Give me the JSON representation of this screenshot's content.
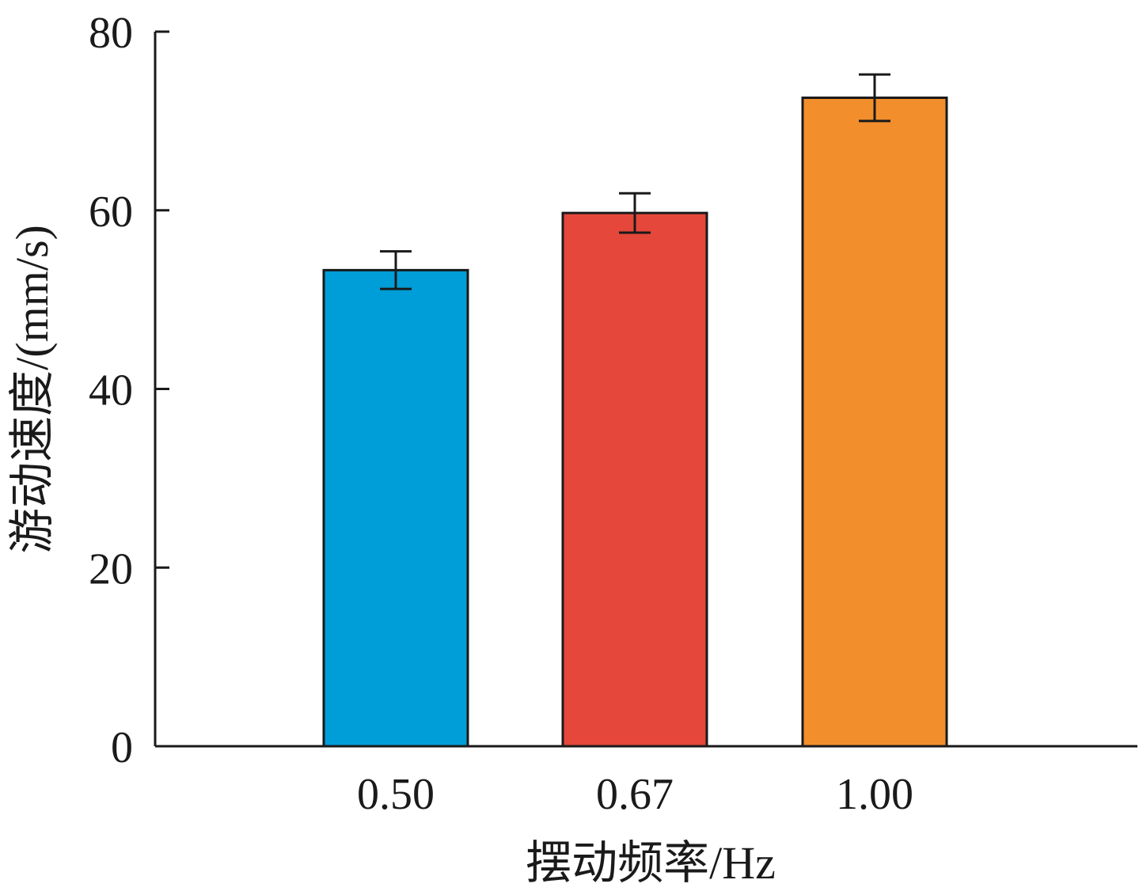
{
  "chart_data": {
    "type": "bar",
    "categories": [
      "0.50",
      "0.67",
      "1.00"
    ],
    "series": [
      {
        "values": [
          53.3,
          59.7,
          72.6
        ],
        "errors": [
          2.1,
          2.2,
          2.6
        ],
        "colors": [
          "#009ed8",
          "#e5473b",
          "#f28f2c"
        ]
      }
    ],
    "xlabel": "摆动频率/Hz",
    "ylabel": "游动速度/(mm/s)",
    "ylim": [
      0,
      80
    ],
    "yticks": [
      0,
      20,
      40,
      60,
      80
    ],
    "grid": false
  }
}
